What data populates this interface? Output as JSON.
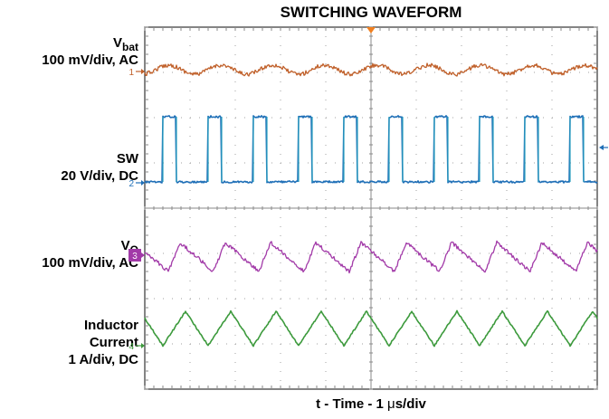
{
  "chart_data": {
    "type": "line",
    "title": "SWITCHING WAVEFORM",
    "xlabel_prefix": "t - Time - 1 ",
    "xlabel_mu": "μ",
    "xlabel_suffix": "s/div",
    "x_divisions": 10,
    "y_divisions": 8,
    "time_per_div_us": 1,
    "trigger_marker": "orange triangle at center top",
    "colors": {
      "grid_border": "#333333",
      "grid_dots": "#a0a0a0",
      "vbat": "#c0602a",
      "sw": "#1f6fb7",
      "sw_edge": "#2a9fbf",
      "vo": "#a23aa8",
      "il": "#3c9a3c",
      "trigger": "#f08020"
    },
    "series": [
      {
        "channel": "1",
        "name_main": "V",
        "name_sub": "bat",
        "scale": "100 mV/div, AC",
        "shape": "ripple",
        "period_us": 1.15
      },
      {
        "channel": "2",
        "name_main": "SW",
        "name_sub": "",
        "scale": "20 V/div, DC",
        "shape": "square",
        "period_us": 1.0,
        "duty": 0.3
      },
      {
        "channel": "3",
        "name_main": "V",
        "name_sub": "O",
        "scale": "100 mV/div, AC",
        "shape": "sawtooth",
        "period_us": 1.0
      },
      {
        "channel": "4",
        "name_line1": "Inductor",
        "name_line2": "Current",
        "scale": "1 A/div, DC",
        "shape": "triangle",
        "period_us": 1.0
      }
    ]
  }
}
